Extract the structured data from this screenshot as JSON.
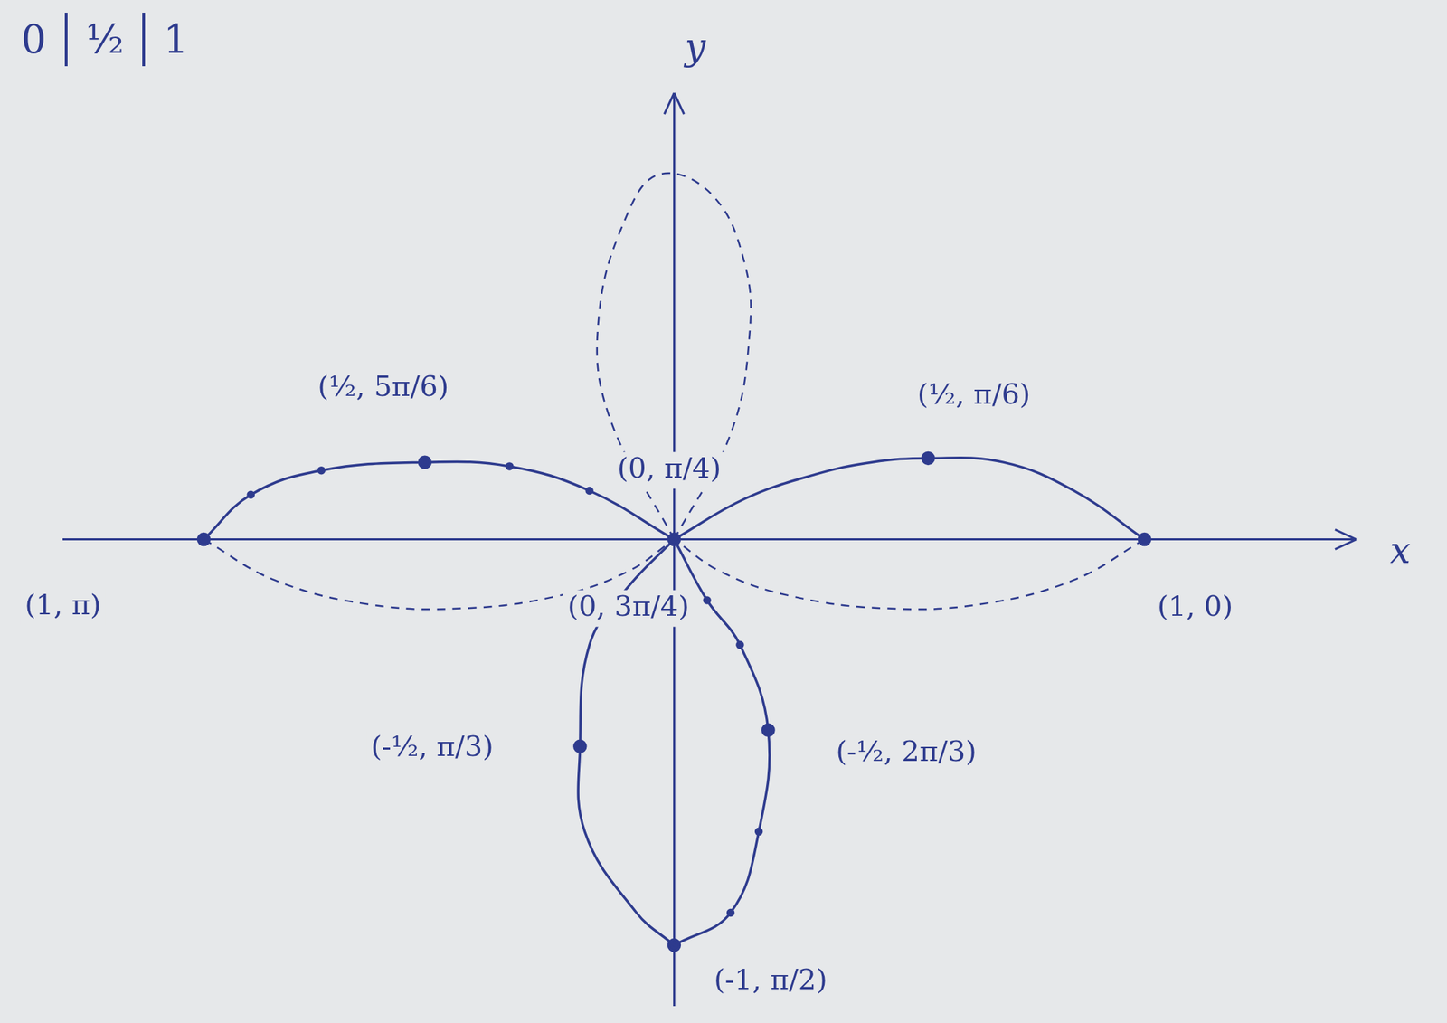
{
  "chart_data": {
    "type": "line",
    "table_fragment": [
      "0",
      "½",
      "1"
    ],
    "x_label": "x",
    "y_label": "y",
    "xlim": [
      -1.3,
      1.45
    ],
    "ylim": [
      -1.15,
      1.1
    ],
    "tick_labels": false,
    "grid": false,
    "series": [
      {
        "color": "#2e3b8e",
        "line_style": "solid",
        "marker": "none",
        "x": [
          0,
          0.15,
          0.3,
          0.42,
          0.54,
          0.7,
          0.85,
          1
        ],
        "values": [
          0,
          0.1,
          0.16,
          0.19,
          0.2,
          0.19,
          0.12,
          0
        ]
      },
      {
        "color": "#2e3b8e",
        "line_style": "dashed",
        "marker": "none",
        "x": [
          1,
          0.85,
          0.65,
          0.45,
          0.25,
          0.1,
          0
        ],
        "values": [
          0,
          -0.1,
          -0.16,
          -0.17,
          -0.14,
          -0.08,
          0
        ]
      },
      {
        "color": "#2e3b8e",
        "line_style": "solid",
        "marker": "circle",
        "x": [
          -1,
          -0.9,
          -0.75,
          -0.53,
          -0.35,
          -0.18,
          0
        ],
        "values": [
          0,
          0.11,
          0.17,
          0.19,
          0.18,
          0.12,
          0
        ]
      },
      {
        "color": "#2e3b8e",
        "line_style": "dashed",
        "marker": "none",
        "x": [
          -1,
          -0.85,
          -0.65,
          -0.45,
          -0.25,
          -0.1,
          0
        ],
        "values": [
          0,
          -0.1,
          -0.16,
          -0.17,
          -0.14,
          -0.08,
          0
        ]
      },
      {
        "color": "#2e3b8e",
        "line_style": "solid",
        "marker": "none",
        "x": [
          0,
          -0.1,
          -0.18,
          -0.2,
          -0.19,
          -0.08,
          0
        ],
        "values": [
          0,
          -0.12,
          -0.26,
          -0.51,
          -0.72,
          -0.92,
          -1
        ]
      },
      {
        "color": "#2e3b8e",
        "line_style": "solid",
        "marker": "circle",
        "x": [
          0,
          0.07,
          0.14,
          0.2,
          0.18,
          0.12,
          0
        ],
        "values": [
          0,
          -0.15,
          -0.26,
          -0.47,
          -0.72,
          -0.92,
          -1
        ]
      },
      {
        "color": "#2e3b8e",
        "line_style": "dashed",
        "marker": "none",
        "x": [
          0,
          -0.14,
          -0.16,
          -0.1,
          -0.03,
          0.08,
          0.15,
          0.16,
          0.12,
          0
        ],
        "values": [
          0,
          0.31,
          0.55,
          0.8,
          0.9,
          0.85,
          0.68,
          0.5,
          0.26,
          0
        ]
      },
      {
        "type": "scatter",
        "color": "#2e3b8e",
        "line_style": "none",
        "marker": "circle",
        "x": [
          0,
          1,
          -1,
          0.54,
          -0.53,
          -0.2,
          0.2,
          0
        ],
        "values": [
          0,
          0,
          0,
          0.2,
          0.19,
          -0.51,
          -0.47,
          -1
        ]
      }
    ],
    "annotations": [
      {
        "text": "(½, π/6)",
        "x": 0.54,
        "y": 0.2
      },
      {
        "text": "(½, 5π/6)",
        "x": -0.53,
        "y": 0.19
      },
      {
        "text": "(1, 0)",
        "x": 1,
        "y": 0
      },
      {
        "text": "(1, π)",
        "x": -1,
        "y": 0
      },
      {
        "text": "(-½, π/3)",
        "x": -0.2,
        "y": -0.51
      },
      {
        "text": "(-½, 2π/3)",
        "x": 0.2,
        "y": -0.47
      },
      {
        "text": "(-1, π/2)",
        "x": 0,
        "y": -1
      },
      {
        "text": "(0, π/4)",
        "x": 0,
        "y": 0
      },
      {
        "text": "(0, 3π/4)",
        "x": 0,
        "y": 0
      }
    ]
  }
}
